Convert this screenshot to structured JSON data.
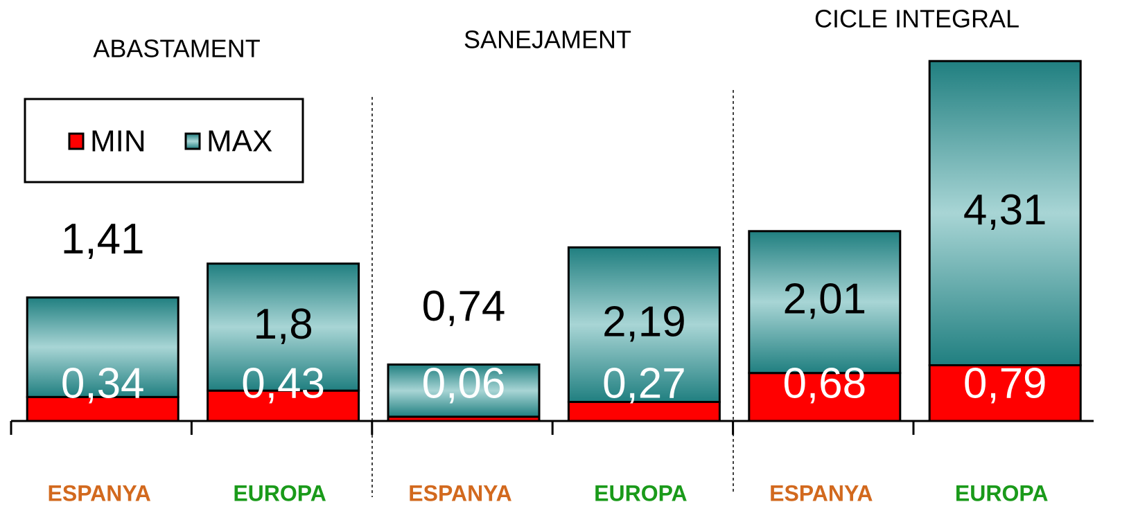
{
  "chart_data": {
    "type": "stacked_bar",
    "groups": [
      "ABASTAMENT",
      "SANEJAMENT",
      "CICLE INTEGRAL"
    ],
    "categories": [
      "ESPANYA",
      "EUROPA",
      "ESPANYA",
      "EUROPA",
      "ESPANYA",
      "EUROPA"
    ],
    "category_colors": [
      "#d2691e",
      "#1a9a1a",
      "#d2691e",
      "#1a9a1a",
      "#d2691e",
      "#1a9a1a"
    ],
    "series": [
      {
        "name": "MIN",
        "color": "#ff0000",
        "values": [
          0.34,
          0.43,
          0.06,
          0.27,
          0.68,
          0.79
        ],
        "value_labels": [
          "0,34",
          "0,43",
          "0,06",
          "0,27",
          "0,68",
          "0,79"
        ]
      },
      {
        "name": "MAX",
        "color": "#207f80",
        "values": [
          1.41,
          1.8,
          0.74,
          2.19,
          2.01,
          4.31
        ],
        "value_labels": [
          "1,41",
          "1,8",
          "0,74",
          "2,19",
          "2,01",
          "4,31"
        ]
      }
    ],
    "ylim": [
      0,
      5.2
    ],
    "legend": "top-left"
  }
}
